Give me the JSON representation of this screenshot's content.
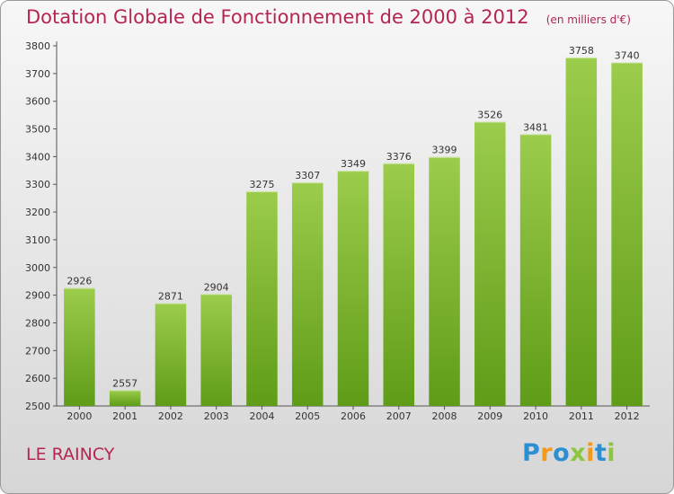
{
  "header": {
    "title": "Dotation Globale de Fonctionnement de 2000 à 2012",
    "subtitle": "(en milliers d'€)"
  },
  "footer": {
    "commune": "LE RAINCY",
    "logo_text": "Proxiti"
  },
  "colors": {
    "title": "#b5254f",
    "bar_top": "#9ccc4c",
    "bar_bottom": "#5f9c17",
    "logo_blue": "#2b8fd1",
    "logo_orange": "#f39a1b",
    "logo_green": "#8cc63f"
  },
  "chart_data": {
    "type": "bar",
    "categories": [
      "2000",
      "2001",
      "2002",
      "2003",
      "2004",
      "2005",
      "2006",
      "2007",
      "2008",
      "2009",
      "2010",
      "2011",
      "2012"
    ],
    "values": [
      2926,
      2557,
      2871,
      2904,
      3275,
      3307,
      3349,
      3376,
      3399,
      3526,
      3481,
      3758,
      3740
    ],
    "ylim": [
      2500,
      3800
    ],
    "yticks": [
      2500,
      2600,
      2700,
      2800,
      2900,
      3000,
      3100,
      3200,
      3300,
      3400,
      3500,
      3600,
      3700,
      3800
    ],
    "grid": false,
    "data_labels": true
  }
}
